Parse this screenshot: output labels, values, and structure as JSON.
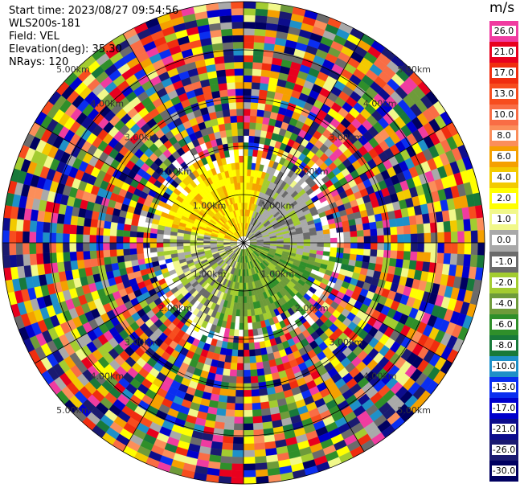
{
  "header": {
    "start_time": "Start time: 2023/08/27 09:54:56",
    "instrument": "WLS200s-181",
    "field": "Field: VEL",
    "elevation": "Elevation(deg): 35.30",
    "nrays": "NRays: 120"
  },
  "colorbar": {
    "unit": "m/s",
    "levels": [
      {
        "label": "26.0",
        "color": "#f03ca0"
      },
      {
        "label": "21.0",
        "color": "#e8001e"
      },
      {
        "label": "17.0",
        "color": "#f02d0f"
      },
      {
        "label": "13.0",
        "color": "#f74d1e"
      },
      {
        "label": "10.0",
        "color": "#f96d45"
      },
      {
        "label": "8.0",
        "color": "#fb8e5a"
      },
      {
        "label": "6.0",
        "color": "#f5a000"
      },
      {
        "label": "4.0",
        "color": "#f3ca00"
      },
      {
        "label": "2.0",
        "color": "#ffff00"
      },
      {
        "label": "1.0",
        "color": "#f1f88a"
      },
      {
        "label": "0.0",
        "color": "#a9a9a9"
      },
      {
        "label": "-1.0",
        "color": "#6b6b6b"
      },
      {
        "label": "-2.0",
        "color": "#a3cc30"
      },
      {
        "label": "-4.0",
        "color": "#6e9b3a"
      },
      {
        "label": "-6.0",
        "color": "#2f8f2a"
      },
      {
        "label": "-8.0",
        "color": "#18793a"
      },
      {
        "label": "-10.0",
        "color": "#1e90c8"
      },
      {
        "label": "-13.0",
        "color": "#0a2ef0"
      },
      {
        "label": "-17.0",
        "color": "#0000cc"
      },
      {
        "label": "-21.0",
        "color": "#0d0d8c"
      },
      {
        "label": "-26.0",
        "color": "#1a1a70"
      },
      {
        "label": "-30.0",
        "color": "#000060"
      }
    ]
  },
  "range_labels": [
    "1.00km",
    "2.00km",
    "3.00km",
    "4.00km",
    "5.00km"
  ],
  "theme": {
    "grid": "#000000",
    "background": "#ffffff"
  }
}
